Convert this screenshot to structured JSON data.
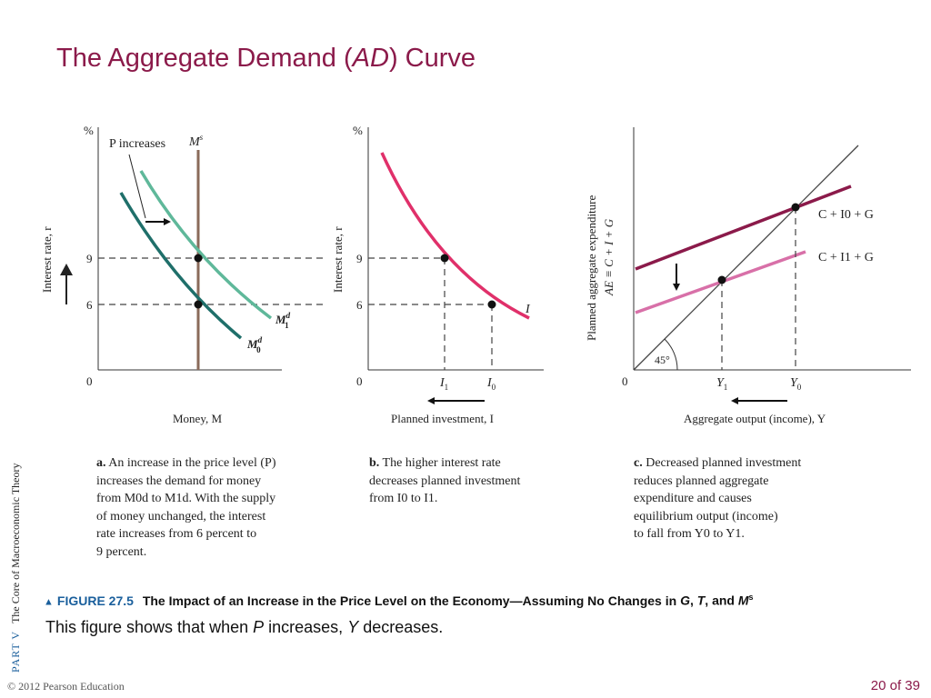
{
  "slide": {
    "title_pre": "The Aggregate Demand (",
    "title_italic": "AD",
    "title_post": ") Curve",
    "sidebar_part": "PART  V",
    "sidebar_text": "The Core of Macroeconomic Theory",
    "footer": "© 2012 Pearson Education",
    "page": "20 of 39"
  },
  "figure": {
    "label": "FIGURE 27.5",
    "caption_text": "The Impact of an Increase in the Price Level on the Economy—Assuming No Changes in ",
    "caption_vars": [
      "G",
      "T",
      "M"
    ],
    "caption_sep": ", ",
    "caption_and": ", and ",
    "caption_sup": "s",
    "summary_pre": "This figure shows that when ",
    "summary_p": "P",
    "summary_mid": " increases, ",
    "summary_y": "Y",
    "summary_post": " decreases."
  },
  "panel_a": {
    "y_unit": "%",
    "y_axis_label": "Interest rate, r",
    "x_axis_label": "Money, M",
    "origin": "0",
    "tick_9": "9",
    "tick_6": "6",
    "annotation": "P increases",
    "ms_label": "M",
    "ms_sup": "s",
    "md1_label": "M",
    "md1_sup": "d",
    "md1_sub": "1",
    "md0_label": "M",
    "md0_sup": "d",
    "md0_sub": "0",
    "caption": {
      "letter": "a.",
      "lines": [
        "An increase in the price level (P)",
        "increases the demand for money",
        "from M0d to M1d. With the supply",
        "of money unchanged, the interest",
        "rate increases from 6 percent to",
        "9 percent."
      ]
    }
  },
  "panel_b": {
    "y_unit": "%",
    "y_axis_label": "Interest rate, r",
    "x_axis_label": "Planned investment, I",
    "origin": "0",
    "tick_9": "9",
    "tick_6": "6",
    "curve_label": "I",
    "x_tick_1": "I",
    "x_tick_1_sub": "1",
    "x_tick_0": "I",
    "x_tick_0_sub": "0",
    "caption": {
      "letter": "b.",
      "lines": [
        "The higher interest rate",
        "decreases planned investment",
        "from I0 to I1."
      ]
    }
  },
  "panel_c": {
    "y_axis_label_1": "Planned aggregate expenditure",
    "y_axis_label_2": "AE ≡ C + I + G",
    "x_axis_label": "Aggregate output (income), Y",
    "origin": "0",
    "angle_label": "45°",
    "upper_line_label": "C + I0 + G",
    "lower_line_label": "C + I1 + G",
    "x_tick_1": "Y",
    "x_tick_1_sub": "1",
    "x_tick_0": "Y",
    "x_tick_0_sub": "0",
    "caption": {
      "letter": "c.",
      "lines": [
        "Decreased planned investment",
        "reduces planned aggregate",
        "expenditure and causes",
        "equilibrium output (income)",
        "to fall from Y0 to Y1."
      ]
    }
  },
  "colors": {
    "title": "#8b1a4a",
    "md_dark": "#1f6f6a",
    "md_light": "#5fb89a",
    "ms_line": "#8a6a5a",
    "investment": "#e0306a",
    "ae_upper": "#8b1a4a",
    "ae_lower": "#d870a8",
    "accent_blue": "#1a5f9c"
  }
}
